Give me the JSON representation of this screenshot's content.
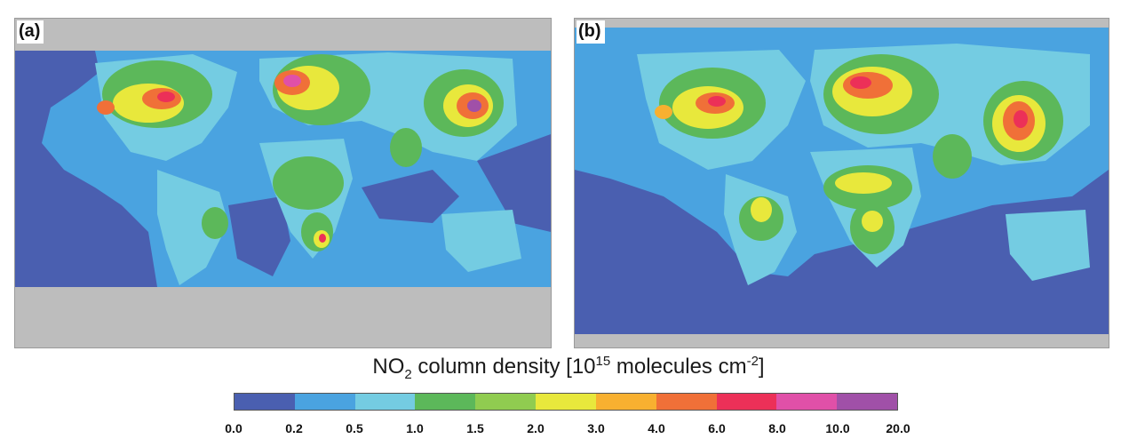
{
  "panels": [
    {
      "label": "(a)"
    },
    {
      "label": "(b)"
    }
  ],
  "colorbar": {
    "title_prefix": "NO",
    "title_sub": "2",
    "title_mid": " column density [10",
    "title_sup1": "15",
    "title_mid2": " molecules cm",
    "title_sup2": "-2",
    "title_suffix": "]",
    "ticks": [
      "0.0",
      "0.2",
      "0.5",
      "1.0",
      "1.5",
      "2.0",
      "3.0",
      "4.0",
      "6.0",
      "8.0",
      "10.0",
      "20.0"
    ],
    "colors": [
      "#4a5fb0",
      "#4aa3e0",
      "#74cce2",
      "#5cb85a",
      "#90cc50",
      "#e8e83c",
      "#f8b030",
      "#f07038",
      "#ec3058",
      "#e050a8",
      "#a050a8"
    ],
    "no_data_color": "#bdbdbd"
  }
}
